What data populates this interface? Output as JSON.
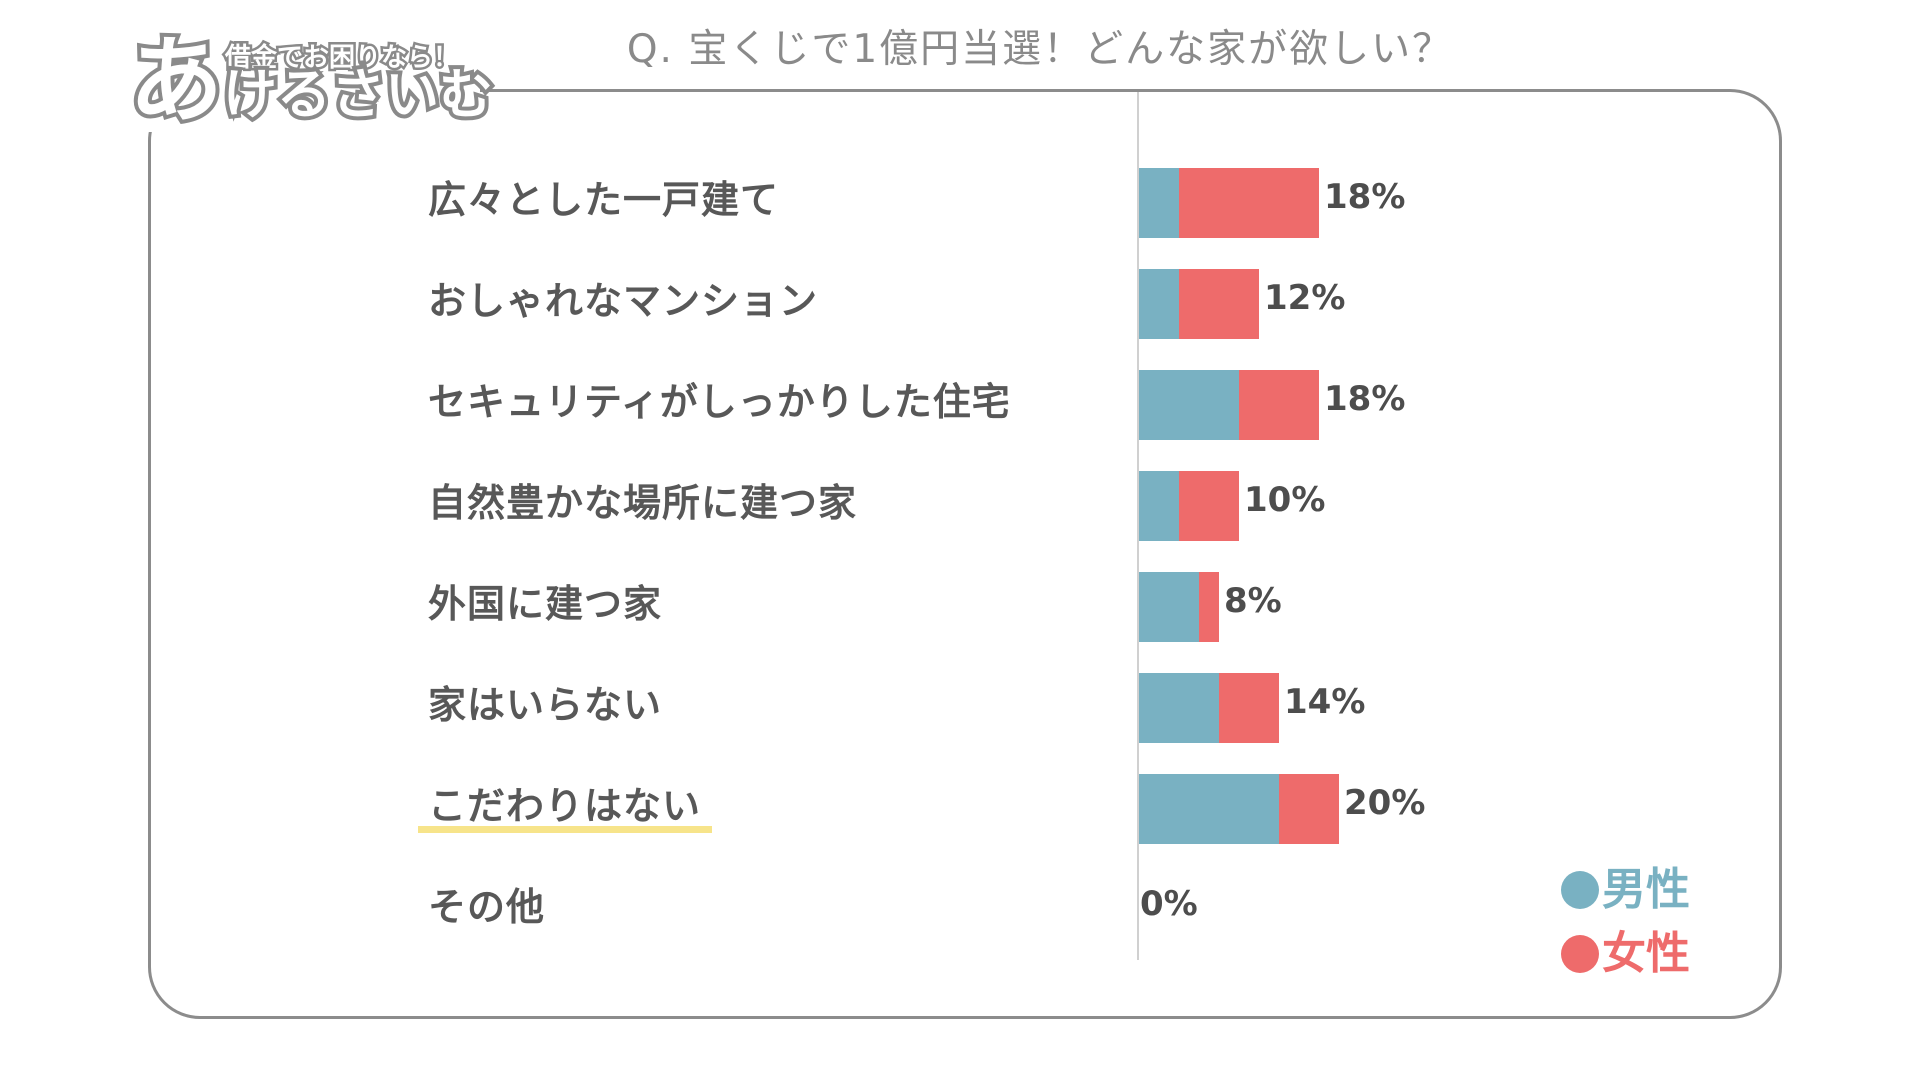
{
  "logo": {
    "tagline": "借金でお困りなら！",
    "name": "あけるさいむ"
  },
  "chart_data": {
    "type": "bar",
    "orientation": "horizontal",
    "stacked": true,
    "title": "Q. 宝くじで1億円当選！どんな家が欲しい？",
    "categories": [
      "広々とした一戸建て",
      "おしゃれなマンション",
      "セキュリティがしっかりした住宅",
      "自然豊かな場所に建つ家",
      "外国に建つ家",
      "家はいらない",
      "こだわりはない",
      "その他"
    ],
    "series": [
      {
        "name": "男性",
        "color": "#79b1c2",
        "values": [
          4,
          4,
          10,
          4,
          6,
          8,
          14,
          0
        ]
      },
      {
        "name": "女性",
        "color": "#ee6b6b",
        "values": [
          14,
          8,
          8,
          6,
          2,
          6,
          6,
          0
        ]
      }
    ],
    "total_labels": [
      "18%",
      "12%",
      "18%",
      "10%",
      "8%",
      "14%",
      "20%",
      "0%"
    ],
    "highlight_index": 6,
    "highlight_color": "#f7e48a",
    "legend_position": "bottom-right",
    "grid": false
  }
}
